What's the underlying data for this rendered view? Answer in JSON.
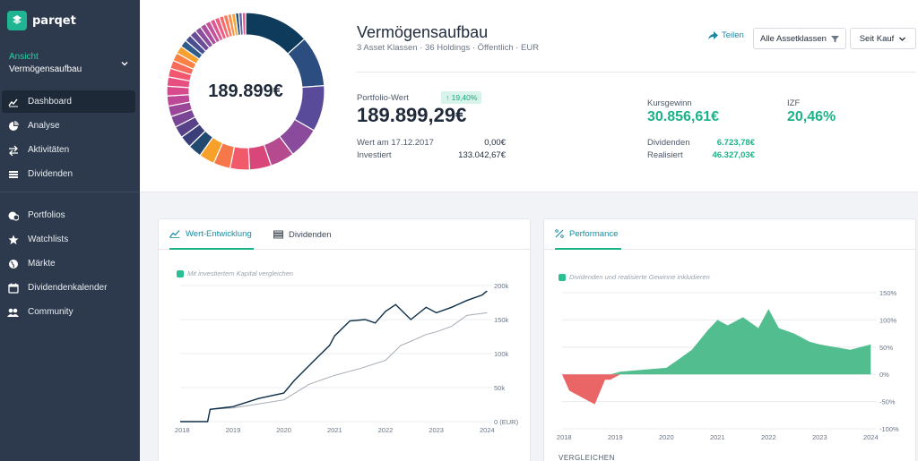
{
  "brand": {
    "name": "parqet"
  },
  "sidebar": {
    "view_label": "Ansicht",
    "view_value": "Vermögensaufbau",
    "items": [
      {
        "label": "Dashboard",
        "icon": "dashboard-icon",
        "active": true
      },
      {
        "label": "Analyse",
        "icon": "pie-chart-icon"
      },
      {
        "label": "Aktivitäten",
        "icon": "transfer-icon"
      },
      {
        "label": "Dividenden",
        "icon": "dividends-icon"
      },
      {
        "label": "Portfolios",
        "icon": "portfolios-icon"
      },
      {
        "label": "Watchlists",
        "icon": "star-icon"
      },
      {
        "label": "Märkte",
        "icon": "globe-icon"
      },
      {
        "label": "Dividendenkalender",
        "icon": "calendar-icon"
      },
      {
        "label": "Community",
        "icon": "community-icon"
      }
    ]
  },
  "header": {
    "donut_total": "189.899€",
    "title": "Vermögensaufbau",
    "subtitle": "3 Asset Klassen · 36 Holdings · Öffentlich · EUR",
    "share_label": "Teilen",
    "asset_filter_label": "Alle Assetklassen",
    "range_label": "Seit Kauf",
    "portfolio_value_label": "Portfolio-Wert",
    "portfolio_change": "↑ 19,40%",
    "portfolio_value": "189.899,29€",
    "start_label": "Wert am 17.12.2017",
    "start_value": "0,00€",
    "invested_label": "Investiert",
    "invested_value": "133.042,67€",
    "gain_label": "Kursgewinn",
    "gain_value": "30.856,61€",
    "izf_label": "IZF",
    "izf_value": "20,46%",
    "dividends_label": "Dividenden",
    "dividends_value": "6.723,78€",
    "realized_label": "Realisiert",
    "realized_value": "46.327,03€"
  },
  "donut_colors": [
    "#0e3a5b",
    "#2b4d7f",
    "#5a4a9a",
    "#8a4b9c",
    "#b64a8e",
    "#d9477a",
    "#f05a6a",
    "#f6784a",
    "#f7a12a",
    "#22496e",
    "#3a3f7a",
    "#57428a",
    "#7a4594",
    "#9c4699",
    "#bc4896",
    "#d84a8c",
    "#e64f80",
    "#f1586f",
    "#f86a5a",
    "#fa8146",
    "#f6a12f",
    "#2f5c8a",
    "#4a4f92",
    "#6a4c99",
    "#8b4e9e",
    "#a94f9e",
    "#c6529a",
    "#dd5790",
    "#ec5e82",
    "#f56c70",
    "#f97c5e",
    "#f9914b",
    "#f5a83a",
    "#20517e",
    "#5b5ea8",
    "#e05a8b"
  ],
  "donut_values": [
    13.5,
    10.5,
    9.5,
    6.5,
    5,
    4.5,
    4,
    3.5,
    3.2,
    2.8,
    2.5,
    2.4,
    2.3,
    2.2,
    2.1,
    2,
    1.9,
    1.8,
    1.7,
    1.7,
    1.6,
    1.5,
    1.4,
    1.4,
    1.3,
    1.2,
    1.1,
    1.0,
    1.0,
    0.9,
    0.9,
    0.8,
    0.8,
    0.7,
    0.7,
    0.7
  ],
  "left_card": {
    "tab_value": "Wert-Entwicklung",
    "tab_dividends": "Dividenden",
    "compare_label": "Mit investiertem Kapital vergleichen"
  },
  "right_card": {
    "tab_performance": "Performance",
    "include_label": "Dividenden und realisierte Gewinne inkludieren",
    "compare_footer": "VERGLEICHEN"
  },
  "chart_data": [
    {
      "type": "line",
      "title": "Wert-Entwicklung",
      "ylabel": "(EUR)",
      "y_ticks": [
        "200k",
        "150k",
        "100k",
        "50k",
        "0 (EUR)"
      ],
      "x_ticks": [
        "2018",
        "2019",
        "2020",
        "2021",
        "2022",
        "2023",
        "2024"
      ],
      "ylim": [
        0,
        200000
      ],
      "series": [
        {
          "color": "#0e2f48",
          "x": [
            2017.96,
            2018.5,
            2018.55,
            2019.0,
            2019.5,
            2020.0,
            2020.2,
            2020.6,
            2020.9,
            2021.0,
            2021.3,
            2021.6,
            2021.8,
            2022.0,
            2022.2,
            2022.5,
            2022.8,
            2023.0,
            2023.3,
            2023.6,
            2023.9,
            2024.0
          ],
          "values": [
            0,
            0,
            18000,
            22000,
            34000,
            42000,
            60000,
            90000,
            112000,
            126000,
            148000,
            150000,
            145000,
            162000,
            172000,
            150000,
            168000,
            160000,
            168000,
            178000,
            186000,
            192000
          ]
        },
        {
          "color": "#a4aab3",
          "x": [
            2017.96,
            2018.5,
            2018.55,
            2019.0,
            2019.5,
            2020.0,
            2020.5,
            2021.0,
            2021.5,
            2022.0,
            2022.3,
            2022.5,
            2022.8,
            2023.0,
            2023.3,
            2023.6,
            2024.0
          ],
          "values": [
            0,
            0,
            18000,
            20000,
            26000,
            32000,
            55000,
            68000,
            78000,
            90000,
            112000,
            118000,
            128000,
            132000,
            140000,
            156000,
            160000
          ]
        }
      ]
    },
    {
      "type": "area",
      "title": "Performance",
      "y_ticks": [
        "150%",
        "100%",
        "50%",
        "0%",
        "-50%",
        "-100%"
      ],
      "x_ticks": [
        "2018",
        "2019",
        "2020",
        "2021",
        "2022",
        "2023",
        "2024"
      ],
      "ylim": [
        -100,
        150
      ],
      "series": [
        {
          "x": [
            2017.96,
            2018.1,
            2018.4,
            2018.6,
            2018.8,
            2018.9,
            2019.1,
            2019.5,
            2020.0,
            2020.2,
            2020.5,
            2020.8,
            2021.0,
            2021.2,
            2021.5,
            2021.8,
            2022.0,
            2022.2,
            2022.5,
            2022.8,
            2023.0,
            2023.3,
            2023.6,
            2023.8,
            2024.0
          ],
          "values": [
            0,
            -30,
            -45,
            -55,
            -10,
            -10,
            5,
            8,
            12,
            25,
            45,
            80,
            100,
            90,
            105,
            85,
            120,
            85,
            75,
            60,
            55,
            50,
            45,
            50,
            55
          ]
        }
      ]
    }
  ]
}
